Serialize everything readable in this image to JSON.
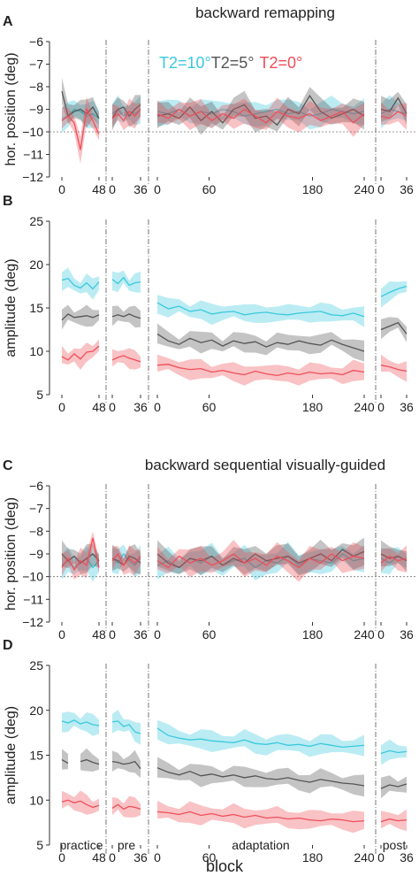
{
  "colors": {
    "cyan": "#3cc9dd",
    "gray": "#555555",
    "red": "#ee4f5a",
    "axis": "#333333",
    "ref": "#777777"
  },
  "legend": [
    {
      "text": "T2=10°",
      "color": "#3cc9dd"
    },
    {
      "text": "T2=5°",
      "color": "#555555"
    },
    {
      "text": "T2=0°",
      "color": "#ee4f5a"
    }
  ],
  "xlabel": "block",
  "phase_labels": [
    "practice",
    "pre",
    "adaptation",
    "post"
  ],
  "segments": [
    {
      "ticks": [
        0,
        48
      ]
    },
    {
      "ticks": [
        0,
        36
      ]
    },
    {
      "ticks": [
        0,
        60,
        180,
        240
      ]
    },
    {
      "ticks": [
        0,
        36
      ]
    }
  ],
  "chart_data": [
    {
      "panel": "A",
      "type": "line",
      "title": "backward remapping",
      "ylabel": "hor. position (deg)",
      "ylim": [
        -12,
        -6
      ],
      "yticks": [
        -6,
        -7,
        -8,
        -9,
        -10,
        -11,
        -12
      ],
      "reference_y": -10,
      "series": [
        {
          "name": "T2=10°",
          "segments": [
            [
              -9.4,
              -9.3,
              -9.0,
              -9.1,
              -9.3,
              -9.2,
              -9.4
            ],
            [
              -9.2,
              -9.0,
              -9.3,
              -9.1,
              -9.2,
              -9.0
            ],
            [
              -9.1,
              -9.2,
              -9.0,
              -9.3,
              -9.1,
              -9.2,
              -9.0,
              -9.1,
              -9.3,
              -9.2,
              -9.1,
              -9.0,
              -9.2,
              -9.1,
              -9.3,
              -9.2,
              -9.0,
              -9.1,
              -9.2,
              -9.1
            ],
            [
              -9.2,
              -9.0,
              -9.1,
              -9.2
            ]
          ]
        },
        {
          "name": "T2=5°",
          "segments": [
            [
              -8.2,
              -9.3,
              -9.1,
              -9.0,
              -9.2,
              -8.9,
              -9.4
            ],
            [
              -9.4,
              -9.0,
              -8.9,
              -9.3,
              -9.0,
              -8.8
            ],
            [
              -9.3,
              -9.2,
              -9.4,
              -8.9,
              -9.5,
              -9.1,
              -9.6,
              -9.0,
              -8.8,
              -9.4,
              -9.3,
              -9.7,
              -9.0,
              -9.2,
              -8.4,
              -9.1,
              -9.4,
              -9.2,
              -9.0,
              -9.3
            ],
            [
              -9.0,
              -9.1,
              -8.5,
              -9.2
            ]
          ]
        },
        {
          "name": "T2=0°",
          "segments": [
            [
              -9.5,
              -9.3,
              -9.6,
              -10.8,
              -9.0,
              -9.5,
              -10.1
            ],
            [
              -9.4,
              -9.2,
              -9.5,
              -9.1,
              -9.3,
              -9.0
            ],
            [
              -9.2,
              -9.4,
              -9.0,
              -9.3,
              -9.1,
              -9.5,
              -9.2,
              -9.4,
              -9.0,
              -9.3,
              -9.6,
              -9.1,
              -9.3,
              -9.4,
              -9.2,
              -9.5,
              -9.3,
              -9.1,
              -9.6,
              -9.2
            ],
            [
              -9.3,
              -9.4,
              -9.1,
              -9.3
            ]
          ]
        }
      ]
    },
    {
      "panel": "B",
      "type": "line",
      "ylabel": "amplitude (deg)",
      "ylim": [
        5,
        25
      ],
      "yticks": [
        25,
        20,
        15,
        10,
        5
      ],
      "series": [
        {
          "name": "T2=10°",
          "segments": [
            [
              18.2,
              18.4,
              17.6,
              17.3,
              17.9,
              17.2,
              18.0
            ],
            [
              18.3,
              17.8,
              18.5,
              17.6,
              17.9,
              18.0
            ],
            [
              15.6,
              14.9,
              15.2,
              14.6,
              14.8,
              14.3,
              14.5,
              14.6,
              14.2,
              14.4,
              14.5,
              14.3,
              14.2,
              14.4,
              14.5,
              14.6,
              14.2,
              14.1,
              14.4,
              14.0
            ],
            [
              16.3,
              16.8,
              17.2,
              17.5
            ]
          ]
        },
        {
          "name": "T2=5°",
          "segments": [
            [
              13.6,
              14.3,
              13.9,
              14.0,
              14.1,
              13.9,
              14.2
            ],
            [
              14.0,
              14.2,
              14.0,
              14.3,
              14.0,
              13.8
            ],
            [
              12.0,
              11.2,
              10.8,
              11.5,
              11.0,
              11.3,
              10.6,
              11.2,
              10.9,
              11.1,
              10.5,
              11.0,
              10.8,
              11.2,
              10.9,
              10.7,
              11.3,
              10.8,
              10.4,
              10.0
            ],
            [
              12.5,
              12.9,
              13.3,
              12.0
            ]
          ]
        },
        {
          "name": "T2=0°",
          "segments": [
            [
              9.4,
              9.0,
              9.7,
              9.1,
              9.9,
              10.0,
              10.6
            ],
            [
              9.0,
              9.3,
              9.5,
              9.2,
              9.0,
              8.8
            ],
            [
              8.4,
              8.5,
              8.1,
              7.9,
              8.0,
              7.6,
              7.8,
              7.5,
              7.3,
              7.7,
              7.4,
              7.2,
              7.5,
              7.3,
              7.6,
              7.4,
              7.5,
              7.3,
              7.8,
              7.6
            ],
            [
              8.4,
              8.2,
              7.9,
              7.7
            ]
          ]
        }
      ]
    },
    {
      "panel": "C",
      "type": "line",
      "title": "backward sequential visually-guided",
      "ylabel": "hor. position (deg)",
      "ylim": [
        -12,
        -6
      ],
      "yticks": [
        -6,
        -7,
        -8,
        -9,
        -10,
        -11,
        -12
      ],
      "reference_y": -10,
      "series": [
        {
          "name": "T2=10°",
          "segments": [
            [
              -9.5,
              -9.3,
              -9.6,
              -9.4,
              -9.2,
              -9.6,
              -9.3
            ],
            [
              -9.2,
              -9.4,
              -9.0,
              -9.3,
              -9.5,
              -9.2
            ],
            [
              -9.5,
              -9.3,
              -9.6,
              -9.2,
              -9.4,
              -9.1,
              -9.5,
              -9.3,
              -9.2,
              -9.6,
              -9.3,
              -9.4,
              -9.1,
              -9.5,
              -9.2,
              -9.3,
              -9.4,
              -9.0,
              -9.3,
              -9.2
            ],
            [
              -9.2,
              -9.4,
              -9.1,
              -9.3
            ]
          ]
        },
        {
          "name": "T2=5°",
          "segments": [
            [
              -9.0,
              -9.3,
              -9.1,
              -9.4,
              -9.2,
              -9.0,
              -9.3
            ],
            [
              -9.2,
              -9.3,
              -9.5,
              -9.1,
              -9.2,
              -9.4
            ],
            [
              -9.0,
              -9.4,
              -9.6,
              -9.2,
              -9.3,
              -9.1,
              -9.5,
              -9.2,
              -9.4,
              -9.0,
              -9.3,
              -9.2,
              -9.1,
              -9.4,
              -9.2,
              -9.0,
              -9.3,
              -8.8,
              -9.1,
              -8.9
            ],
            [
              -9.0,
              -9.2,
              -9.1,
              -9.3
            ]
          ]
        },
        {
          "name": "T2=0°",
          "segments": [
            [
              -9.6,
              -9.2,
              -9.7,
              -9.3,
              -9.5,
              -8.3,
              -9.6
            ],
            [
              -9.3,
              -9.0,
              -9.5,
              -9.2,
              -9.4,
              -9.1
            ],
            [
              -9.3,
              -9.6,
              -9.1,
              -9.4,
              -9.2,
              -9.5,
              -9.3,
              -9.0,
              -9.4,
              -9.2,
              -9.5,
              -9.1,
              -9.3,
              -9.6,
              -9.2,
              -9.4,
              -9.0,
              -9.3,
              -9.1,
              -9.2
            ],
            [
              -9.4,
              -9.1,
              -9.3,
              -9.2
            ]
          ]
        }
      ]
    },
    {
      "panel": "D",
      "type": "line",
      "ylabel": "amplitude (deg)",
      "ylim": [
        5,
        25
      ],
      "yticks": [
        25,
        20,
        15,
        10,
        5
      ],
      "series": [
        {
          "name": "T2=10°",
          "segments": [
            [
              18.8,
              18.6,
              18.9,
              18.5,
              18.7,
              18.4,
              18.3
            ],
            [
              18.7,
              18.8,
              18.2,
              18.4,
              17.6,
              17.4
            ],
            [
              18.0,
              17.2,
              16.9,
              16.7,
              16.8,
              16.6,
              16.5,
              16.4,
              16.7,
              16.3,
              16.2,
              16.4,
              16.1,
              16.2,
              16.0,
              16.3,
              16.1,
              15.9,
              16.0,
              16.1
            ],
            [
              15.2,
              15.5,
              15.3,
              15.4
            ]
          ]
        },
        {
          "name": "T2=5°",
          "segments": [
            [
              14.5,
              14.1,
              null,
              14.3,
              14.5,
              14.2,
              14.0
            ],
            [
              14.3,
              14.2,
              14.0,
              14.1,
              14.3,
              13.5
            ],
            [
              13.6,
              13.1,
              12.8,
              13.2,
              12.7,
              12.9,
              12.6,
              12.8,
              12.5,
              12.7,
              12.4,
              12.3,
              12.5,
              12.2,
              12.0,
              12.3,
              12.1,
              11.9,
              11.8,
              11.6
            ],
            [
              11.3,
              11.7,
              11.5,
              11.8
            ]
          ]
        },
        {
          "name": "T2=0°",
          "segments": [
            [
              9.8,
              10.0,
              9.7,
              9.9,
              9.5,
              9.2,
              9.4
            ],
            [
              9.1,
              9.5,
              9.0,
              9.3,
              9.2,
              9.0
            ],
            [
              8.7,
              8.6,
              8.4,
              8.7,
              8.3,
              8.5,
              8.2,
              8.4,
              8.1,
              8.3,
              8.0,
              8.1,
              7.9,
              8.0,
              7.8,
              7.7,
              7.9,
              7.8,
              7.6,
              7.7
            ],
            [
              7.6,
              7.9,
              7.7,
              7.8
            ]
          ]
        }
      ]
    }
  ]
}
